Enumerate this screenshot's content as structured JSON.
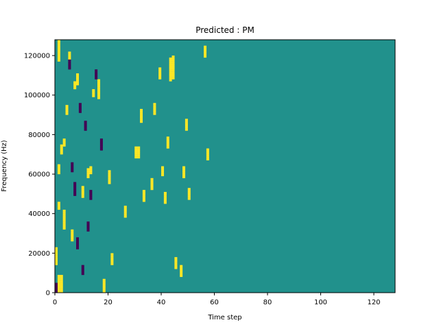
{
  "chart_data": {
    "type": "heatmap",
    "title": "Predicted : PM",
    "xlabel": "Time step",
    "ylabel": "Frequency (Hz)",
    "xlim": [
      0,
      128
    ],
    "ylim": [
      0,
      128000
    ],
    "x_ticks": [
      0,
      20,
      40,
      60,
      80,
      100,
      120
    ],
    "y_ticks": [
      0,
      20000,
      40000,
      60000,
      80000,
      100000,
      120000
    ],
    "x_tick_labels": [
      "0",
      "20",
      "40",
      "60",
      "80",
      "100",
      "120"
    ],
    "y_tick_labels": [
      "0",
      "20000",
      "40000",
      "60000",
      "80000",
      "100000",
      "120000"
    ],
    "n_time_steps": 128,
    "n_frequency_bins": 128,
    "value_levels": {
      "low": -1,
      "mid": 0,
      "high": 1
    },
    "colors": {
      "low": "#440154",
      "mid": "#21918c",
      "high": "#fde725"
    },
    "background_level": "mid",
    "high_cells": [
      [
        1,
        0
      ],
      [
        1,
        1
      ],
      [
        1,
        2
      ],
      [
        1,
        3
      ],
      [
        1,
        4
      ],
      [
        1,
        5
      ],
      [
        1,
        6
      ],
      [
        1,
        7
      ],
      [
        1,
        8
      ],
      [
        2,
        0
      ],
      [
        2,
        1
      ],
      [
        2,
        2
      ],
      [
        2,
        3
      ],
      [
        2,
        4
      ],
      [
        2,
        5
      ],
      [
        2,
        6
      ],
      [
        2,
        7
      ],
      [
        2,
        8
      ],
      [
        0,
        14
      ],
      [
        0,
        15
      ],
      [
        0,
        16
      ],
      [
        0,
        17
      ],
      [
        0,
        18
      ],
      [
        0,
        19
      ],
      [
        0,
        20
      ],
      [
        0,
        21
      ],
      [
        0,
        22
      ],
      [
        1,
        42
      ],
      [
        1,
        43
      ],
      [
        1,
        44
      ],
      [
        1,
        45
      ],
      [
        1,
        60
      ],
      [
        1,
        61
      ],
      [
        1,
        62
      ],
      [
        1,
        63
      ],
      [
        1,
        64
      ],
      [
        3,
        32
      ],
      [
        3,
        33
      ],
      [
        3,
        34
      ],
      [
        3,
        35
      ],
      [
        3,
        36
      ],
      [
        3,
        37
      ],
      [
        3,
        38
      ],
      [
        3,
        39
      ],
      [
        3,
        40
      ],
      [
        3,
        41
      ],
      [
        2,
        70
      ],
      [
        2,
        71
      ],
      [
        2,
        72
      ],
      [
        2,
        73
      ],
      [
        2,
        74
      ],
      [
        3,
        74
      ],
      [
        3,
        75
      ],
      [
        3,
        76
      ],
      [
        3,
        77
      ],
      [
        4,
        90
      ],
      [
        4,
        91
      ],
      [
        4,
        92
      ],
      [
        4,
        93
      ],
      [
        4,
        94
      ],
      [
        1,
        117
      ],
      [
        1,
        118
      ],
      [
        1,
        119
      ],
      [
        1,
        120
      ],
      [
        1,
        121
      ],
      [
        1,
        122
      ],
      [
        1,
        123
      ],
      [
        1,
        124
      ],
      [
        1,
        125
      ],
      [
        1,
        126
      ],
      [
        1,
        127
      ],
      [
        5,
        118
      ],
      [
        5,
        119
      ],
      [
        5,
        120
      ],
      [
        5,
        121
      ],
      [
        6,
        26
      ],
      [
        6,
        27
      ],
      [
        6,
        28
      ],
      [
        6,
        29
      ],
      [
        6,
        30
      ],
      [
        6,
        31
      ],
      [
        7,
        103
      ],
      [
        7,
        104
      ],
      [
        7,
        105
      ],
      [
        7,
        106
      ],
      [
        8,
        105
      ],
      [
        8,
        106
      ],
      [
        8,
        107
      ],
      [
        8,
        108
      ],
      [
        8,
        109
      ],
      [
        8,
        110
      ],
      [
        10,
        48
      ],
      [
        10,
        49
      ],
      [
        10,
        50
      ],
      [
        10,
        51
      ],
      [
        10,
        52
      ],
      [
        10,
        53
      ],
      [
        12,
        58
      ],
      [
        12,
        59
      ],
      [
        12,
        60
      ],
      [
        12,
        61
      ],
      [
        12,
        62
      ],
      [
        13,
        60
      ],
      [
        13,
        61
      ],
      [
        13,
        62
      ],
      [
        13,
        63
      ],
      [
        14,
        99
      ],
      [
        14,
        100
      ],
      [
        14,
        101
      ],
      [
        14,
        102
      ],
      [
        16,
        98
      ],
      [
        16,
        99
      ],
      [
        16,
        100
      ],
      [
        16,
        101
      ],
      [
        16,
        102
      ],
      [
        16,
        103
      ],
      [
        16,
        104
      ],
      [
        16,
        105
      ],
      [
        16,
        106
      ],
      [
        16,
        107
      ],
      [
        18,
        0
      ],
      [
        18,
        1
      ],
      [
        18,
        2
      ],
      [
        18,
        3
      ],
      [
        18,
        4
      ],
      [
        18,
        5
      ],
      [
        18,
        6
      ],
      [
        20,
        55
      ],
      [
        20,
        56
      ],
      [
        20,
        57
      ],
      [
        20,
        58
      ],
      [
        20,
        59
      ],
      [
        20,
        60
      ],
      [
        20,
        61
      ],
      [
        21,
        14
      ],
      [
        21,
        15
      ],
      [
        21,
        16
      ],
      [
        21,
        17
      ],
      [
        21,
        18
      ],
      [
        21,
        19
      ],
      [
        26,
        38
      ],
      [
        26,
        39
      ],
      [
        26,
        40
      ],
      [
        26,
        41
      ],
      [
        26,
        42
      ],
      [
        26,
        43
      ],
      [
        30,
        68
      ],
      [
        30,
        69
      ],
      [
        30,
        70
      ],
      [
        30,
        71
      ],
      [
        30,
        72
      ],
      [
        30,
        73
      ],
      [
        31,
        68
      ],
      [
        31,
        69
      ],
      [
        31,
        70
      ],
      [
        31,
        71
      ],
      [
        31,
        72
      ],
      [
        31,
        73
      ],
      [
        32,
        86
      ],
      [
        32,
        87
      ],
      [
        32,
        88
      ],
      [
        32,
        89
      ],
      [
        32,
        90
      ],
      [
        32,
        91
      ],
      [
        32,
        92
      ],
      [
        33,
        46
      ],
      [
        33,
        47
      ],
      [
        33,
        48
      ],
      [
        33,
        49
      ],
      [
        33,
        50
      ],
      [
        33,
        51
      ],
      [
        36,
        52
      ],
      [
        36,
        53
      ],
      [
        36,
        54
      ],
      [
        36,
        55
      ],
      [
        36,
        56
      ],
      [
        36,
        57
      ],
      [
        37,
        90
      ],
      [
        37,
        91
      ],
      [
        37,
        92
      ],
      [
        37,
        93
      ],
      [
        37,
        94
      ],
      [
        37,
        95
      ],
      [
        39,
        108
      ],
      [
        39,
        109
      ],
      [
        39,
        110
      ],
      [
        39,
        111
      ],
      [
        39,
        112
      ],
      [
        39,
        113
      ],
      [
        40,
        59
      ],
      [
        40,
        60
      ],
      [
        40,
        61
      ],
      [
        40,
        62
      ],
      [
        40,
        63
      ],
      [
        41,
        45
      ],
      [
        41,
        46
      ],
      [
        41,
        47
      ],
      [
        41,
        48
      ],
      [
        41,
        49
      ],
      [
        41,
        50
      ],
      [
        42,
        73
      ],
      [
        42,
        74
      ],
      [
        42,
        75
      ],
      [
        42,
        76
      ],
      [
        42,
        77
      ],
      [
        42,
        78
      ],
      [
        43,
        107
      ],
      [
        43,
        108
      ],
      [
        43,
        109
      ],
      [
        43,
        110
      ],
      [
        43,
        111
      ],
      [
        43,
        112
      ],
      [
        43,
        113
      ],
      [
        43,
        114
      ],
      [
        43,
        115
      ],
      [
        43,
        116
      ],
      [
        43,
        117
      ],
      [
        43,
        118
      ],
      [
        44,
        108
      ],
      [
        44,
        109
      ],
      [
        44,
        110
      ],
      [
        44,
        111
      ],
      [
        44,
        112
      ],
      [
        44,
        113
      ],
      [
        44,
        114
      ],
      [
        44,
        115
      ],
      [
        44,
        116
      ],
      [
        44,
        117
      ],
      [
        44,
        118
      ],
      [
        44,
        119
      ],
      [
        45,
        12
      ],
      [
        45,
        13
      ],
      [
        45,
        14
      ],
      [
        45,
        15
      ],
      [
        45,
        16
      ],
      [
        45,
        17
      ],
      [
        47,
        8
      ],
      [
        47,
        9
      ],
      [
        47,
        10
      ],
      [
        47,
        11
      ],
      [
        47,
        12
      ],
      [
        47,
        13
      ],
      [
        48,
        58
      ],
      [
        48,
        59
      ],
      [
        48,
        60
      ],
      [
        48,
        61
      ],
      [
        48,
        62
      ],
      [
        48,
        63
      ],
      [
        49,
        82
      ],
      [
        49,
        83
      ],
      [
        49,
        84
      ],
      [
        49,
        85
      ],
      [
        49,
        86
      ],
      [
        49,
        87
      ],
      [
        50,
        47
      ],
      [
        50,
        48
      ],
      [
        50,
        49
      ],
      [
        50,
        50
      ],
      [
        50,
        51
      ],
      [
        50,
        52
      ],
      [
        56,
        119
      ],
      [
        56,
        120
      ],
      [
        56,
        121
      ],
      [
        56,
        122
      ],
      [
        56,
        123
      ],
      [
        56,
        124
      ],
      [
        57,
        67
      ],
      [
        57,
        68
      ],
      [
        57,
        69
      ],
      [
        57,
        70
      ],
      [
        57,
        71
      ],
      [
        57,
        72
      ]
    ],
    "low_cells": [
      [
        0,
        0
      ],
      [
        0,
        1
      ],
      [
        0,
        2
      ],
      [
        0,
        3
      ],
      [
        0,
        4
      ],
      [
        5,
        113
      ],
      [
        5,
        114
      ],
      [
        5,
        115
      ],
      [
        5,
        116
      ],
      [
        5,
        117
      ],
      [
        6,
        61
      ],
      [
        6,
        62
      ],
      [
        6,
        63
      ],
      [
        6,
        64
      ],
      [
        6,
        65
      ],
      [
        7,
        49
      ],
      [
        7,
        50
      ],
      [
        7,
        51
      ],
      [
        7,
        52
      ],
      [
        7,
        53
      ],
      [
        7,
        54
      ],
      [
        7,
        55
      ],
      [
        8,
        22
      ],
      [
        8,
        23
      ],
      [
        8,
        24
      ],
      [
        8,
        25
      ],
      [
        8,
        26
      ],
      [
        8,
        27
      ],
      [
        9,
        91
      ],
      [
        9,
        92
      ],
      [
        9,
        93
      ],
      [
        9,
        94
      ],
      [
        9,
        95
      ],
      [
        10,
        9
      ],
      [
        10,
        10
      ],
      [
        10,
        11
      ],
      [
        10,
        12
      ],
      [
        10,
        13
      ],
      [
        11,
        82
      ],
      [
        11,
        83
      ],
      [
        11,
        84
      ],
      [
        11,
        85
      ],
      [
        11,
        86
      ],
      [
        12,
        31
      ],
      [
        12,
        32
      ],
      [
        12,
        33
      ],
      [
        12,
        34
      ],
      [
        12,
        35
      ],
      [
        13,
        47
      ],
      [
        13,
        48
      ],
      [
        13,
        49
      ],
      [
        13,
        50
      ],
      [
        13,
        51
      ],
      [
        15,
        108
      ],
      [
        15,
        109
      ],
      [
        15,
        110
      ],
      [
        15,
        111
      ],
      [
        15,
        112
      ],
      [
        17,
        72
      ],
      [
        17,
        73
      ],
      [
        17,
        74
      ],
      [
        17,
        75
      ],
      [
        17,
        76
      ],
      [
        17,
        77
      ]
    ]
  }
}
